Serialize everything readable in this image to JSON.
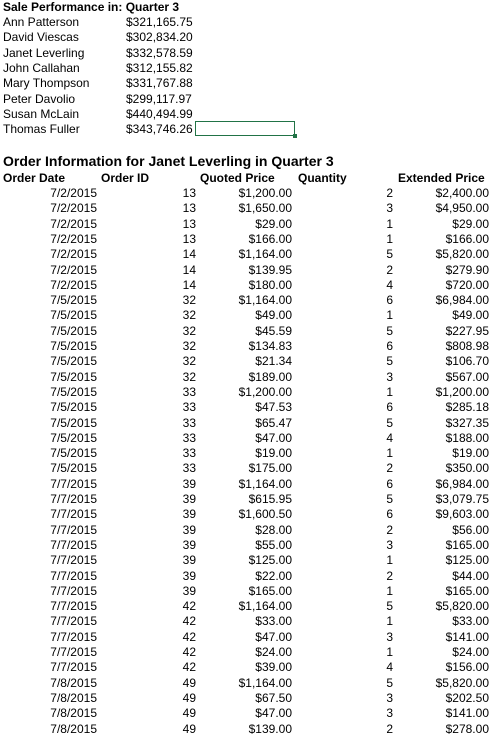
{
  "summary": {
    "title": "Sale Performance in: Quarter 3",
    "rows": [
      {
        "name": "Ann Patterson",
        "amount": "$321,165.75"
      },
      {
        "name": "David Viescas",
        "amount": "$302,834.20"
      },
      {
        "name": "Janet Leverling",
        "amount": "$332,578.59"
      },
      {
        "name": "John Callahan",
        "amount": "$312,155.82"
      },
      {
        "name": "Mary Thompson",
        "amount": "$331,767.88"
      },
      {
        "name": "Peter Davolio",
        "amount": "$299,117.97"
      },
      {
        "name": "Susan McLain",
        "amount": "$440,494.99"
      },
      {
        "name": "Thomas Fuller",
        "amount": "$343,746.26"
      }
    ]
  },
  "orders": {
    "title": "Order Information for Janet Leverling in Quarter 3",
    "headers": {
      "date": "Order Date",
      "id": "Order ID",
      "quoted": "Quoted Price",
      "qty": "Quantity",
      "extended": "Extended Price"
    },
    "rows": [
      [
        "7/2/2015",
        "13",
        "$1,200.00",
        "2",
        "$2,400.00"
      ],
      [
        "7/2/2015",
        "13",
        "$1,650.00",
        "3",
        "$4,950.00"
      ],
      [
        "7/2/2015",
        "13",
        "$29.00",
        "1",
        "$29.00"
      ],
      [
        "7/2/2015",
        "13",
        "$166.00",
        "1",
        "$166.00"
      ],
      [
        "7/2/2015",
        "14",
        "$1,164.00",
        "5",
        "$5,820.00"
      ],
      [
        "7/2/2015",
        "14",
        "$139.95",
        "2",
        "$279.90"
      ],
      [
        "7/2/2015",
        "14",
        "$180.00",
        "4",
        "$720.00"
      ],
      [
        "7/5/2015",
        "32",
        "$1,164.00",
        "6",
        "$6,984.00"
      ],
      [
        "7/5/2015",
        "32",
        "$49.00",
        "1",
        "$49.00"
      ],
      [
        "7/5/2015",
        "32",
        "$45.59",
        "5",
        "$227.95"
      ],
      [
        "7/5/2015",
        "32",
        "$134.83",
        "6",
        "$808.98"
      ],
      [
        "7/5/2015",
        "32",
        "$21.34",
        "5",
        "$106.70"
      ],
      [
        "7/5/2015",
        "32",
        "$189.00",
        "3",
        "$567.00"
      ],
      [
        "7/5/2015",
        "33",
        "$1,200.00",
        "1",
        "$1,200.00"
      ],
      [
        "7/5/2015",
        "33",
        "$47.53",
        "6",
        "$285.18"
      ],
      [
        "7/5/2015",
        "33",
        "$65.47",
        "5",
        "$327.35"
      ],
      [
        "7/5/2015",
        "33",
        "$47.00",
        "4",
        "$188.00"
      ],
      [
        "7/5/2015",
        "33",
        "$19.00",
        "1",
        "$19.00"
      ],
      [
        "7/5/2015",
        "33",
        "$175.00",
        "2",
        "$350.00"
      ],
      [
        "7/7/2015",
        "39",
        "$1,164.00",
        "6",
        "$6,984.00"
      ],
      [
        "7/7/2015",
        "39",
        "$615.95",
        "5",
        "$3,079.75"
      ],
      [
        "7/7/2015",
        "39",
        "$1,600.50",
        "6",
        "$9,603.00"
      ],
      [
        "7/7/2015",
        "39",
        "$28.00",
        "2",
        "$56.00"
      ],
      [
        "7/7/2015",
        "39",
        "$55.00",
        "3",
        "$165.00"
      ],
      [
        "7/7/2015",
        "39",
        "$125.00",
        "1",
        "$125.00"
      ],
      [
        "7/7/2015",
        "39",
        "$22.00",
        "2",
        "$44.00"
      ],
      [
        "7/7/2015",
        "39",
        "$165.00",
        "1",
        "$165.00"
      ],
      [
        "7/7/2015",
        "42",
        "$1,164.00",
        "5",
        "$5,820.00"
      ],
      [
        "7/7/2015",
        "42",
        "$33.00",
        "1",
        "$33.00"
      ],
      [
        "7/7/2015",
        "42",
        "$47.00",
        "3",
        "$141.00"
      ],
      [
        "7/7/2015",
        "42",
        "$24.00",
        "1",
        "$24.00"
      ],
      [
        "7/7/2015",
        "42",
        "$39.00",
        "4",
        "$156.00"
      ],
      [
        "7/8/2015",
        "49",
        "$1,164.00",
        "5",
        "$5,820.00"
      ],
      [
        "7/8/2015",
        "49",
        "$67.50",
        "3",
        "$202.50"
      ],
      [
        "7/8/2015",
        "49",
        "$47.00",
        "3",
        "$141.00"
      ],
      [
        "7/8/2015",
        "49",
        "$139.00",
        "2",
        "$278.00"
      ]
    ]
  },
  "colors": {
    "selection": "#217346"
  }
}
